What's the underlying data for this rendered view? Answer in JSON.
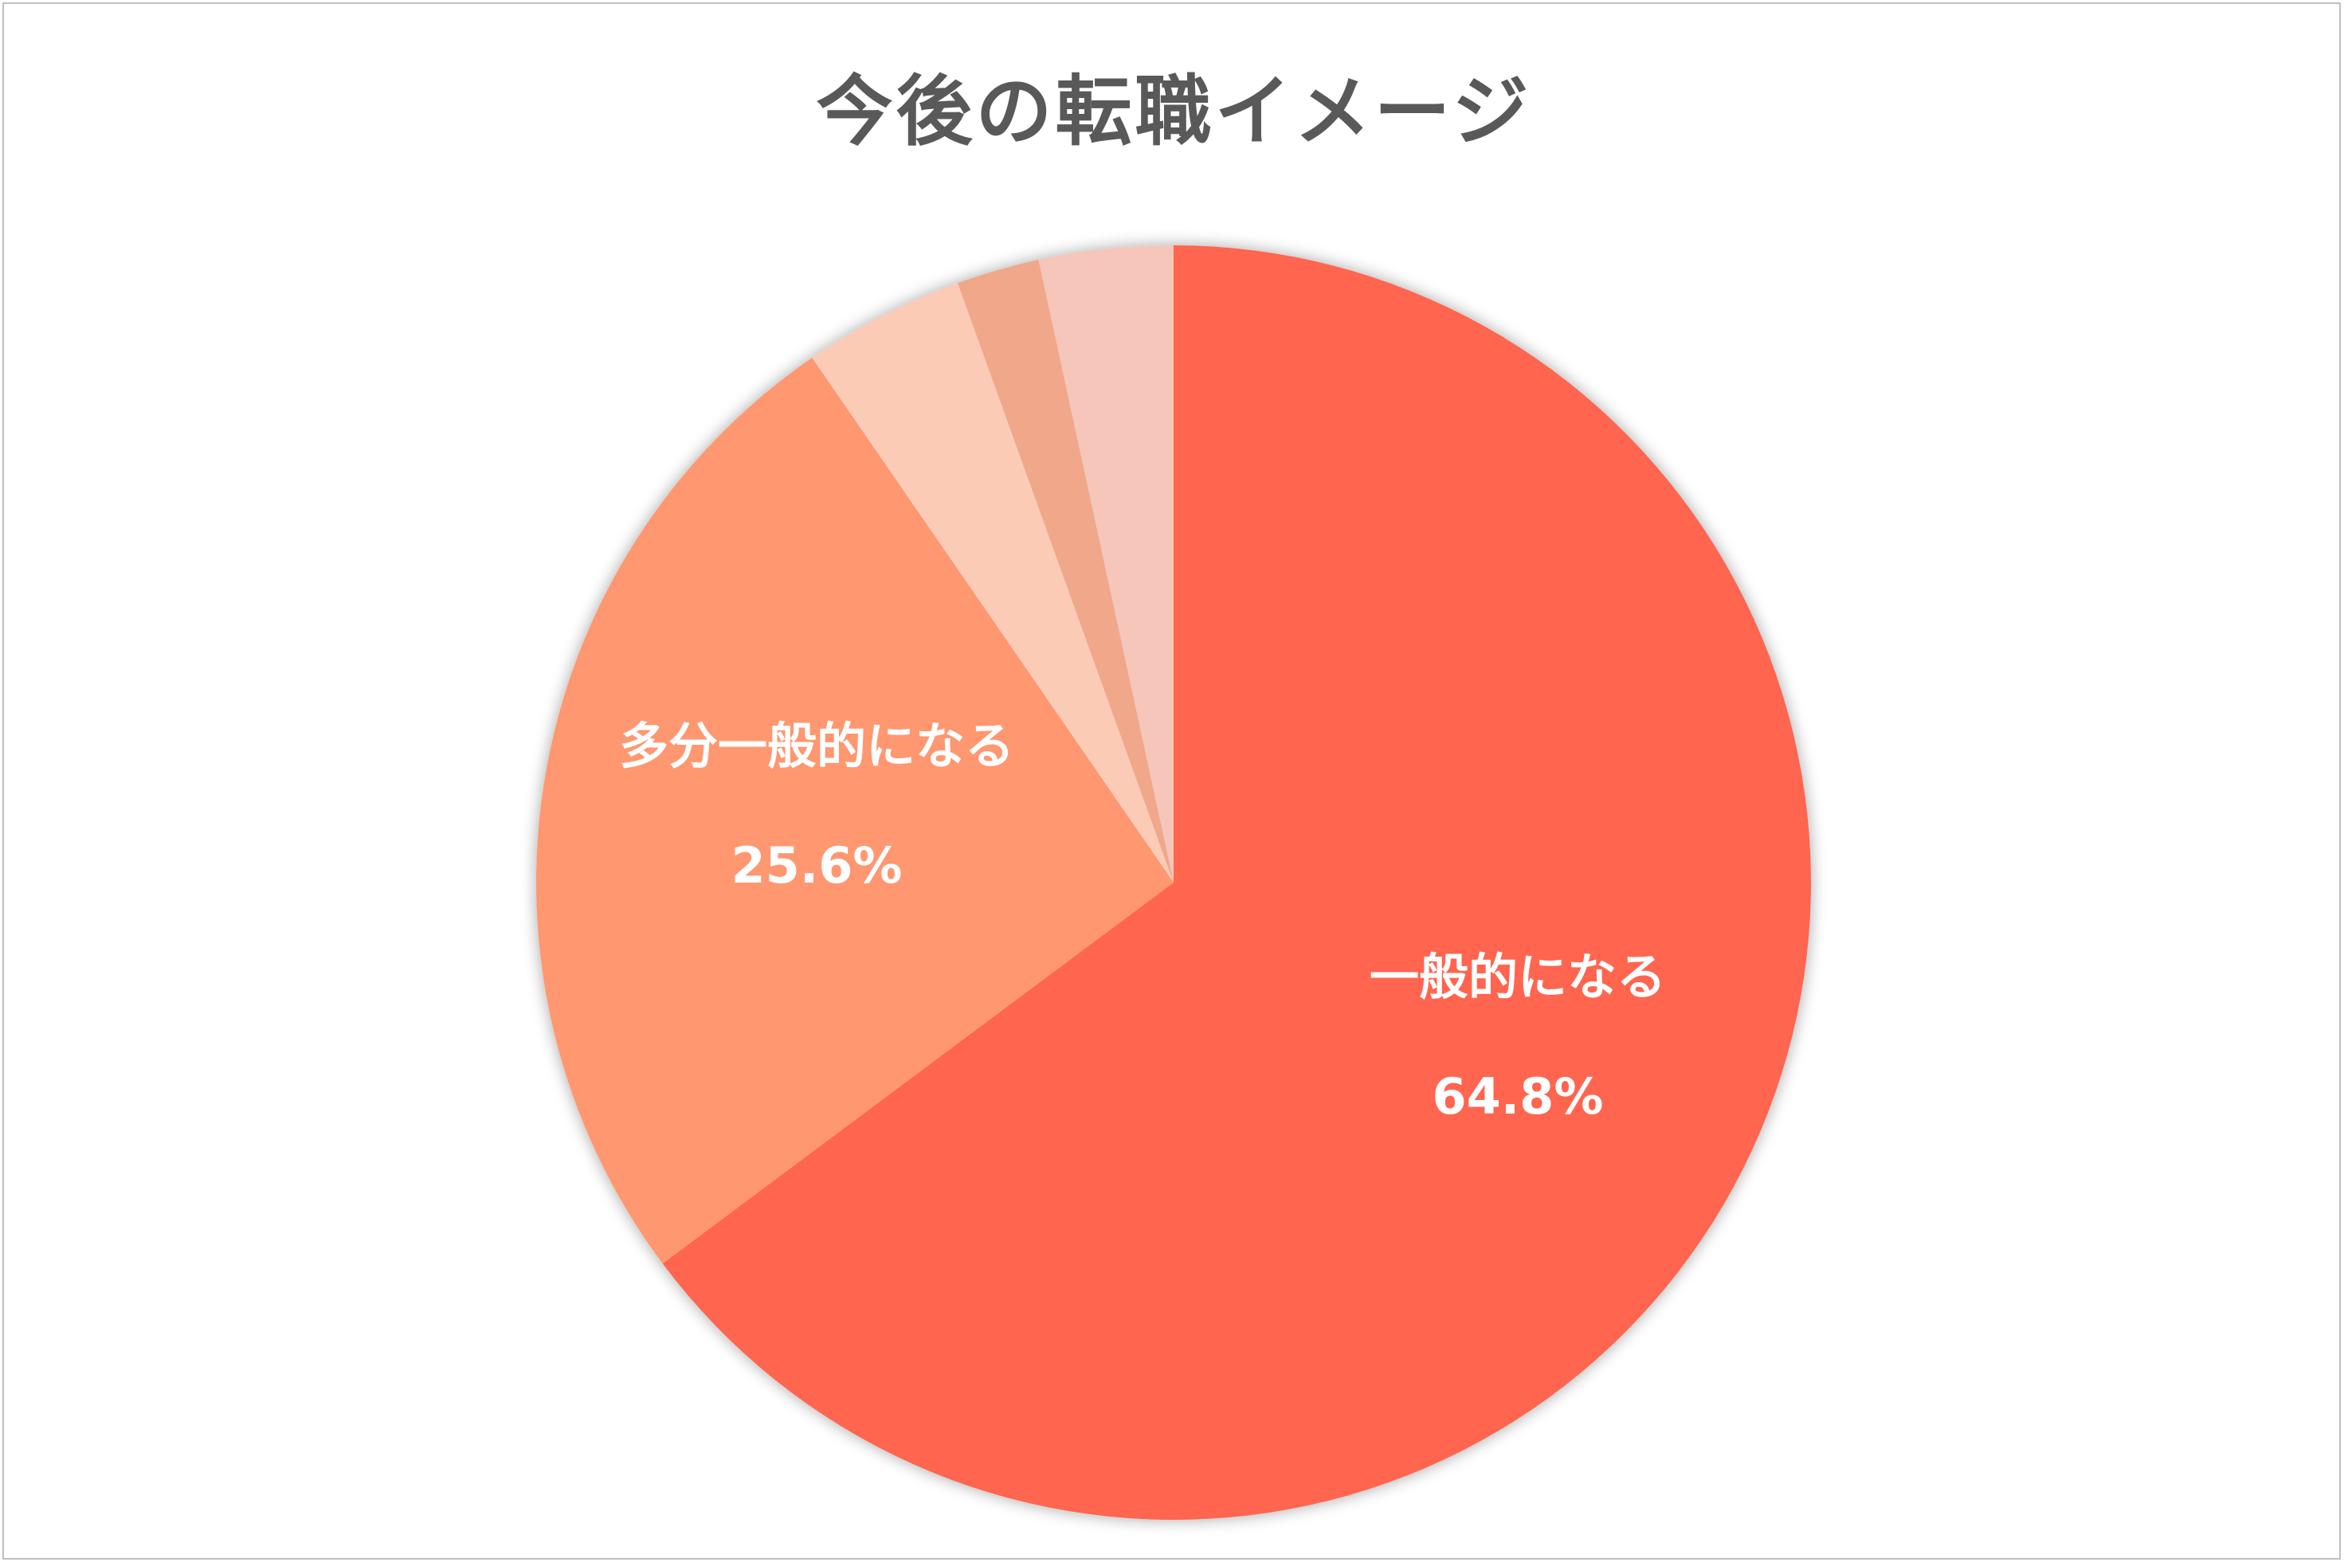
{
  "chart_data": {
    "type": "pie",
    "title": "今後の転職イメージ",
    "start_angle_deg": 0,
    "direction": "clockwise",
    "slices": [
      {
        "value": 64.8,
        "color": "#ff6550",
        "label": "一般的になる",
        "value_label": "64.8%"
      },
      {
        "value": 25.6,
        "color": "#ff976f",
        "label": "多分一般的になる",
        "value_label": "25.6%"
      },
      {
        "value": 4.1,
        "color": "#fbcbb6",
        "label": "",
        "value_label": ""
      },
      {
        "value": 2.1,
        "color": "#f0a78a",
        "label": "",
        "value_label": ""
      },
      {
        "value": 3.4,
        "color": "#f5c6b9",
        "label": "",
        "value_label": ""
      }
    ]
  }
}
